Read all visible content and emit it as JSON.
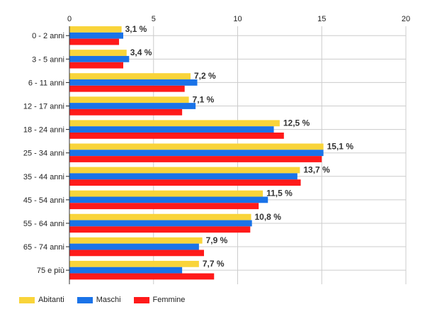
{
  "chart_data": {
    "type": "bar",
    "orientation": "horizontal",
    "title": "",
    "xlabel": "",
    "ylabel": "",
    "xlim": [
      0,
      20
    ],
    "xticks": [
      0,
      5,
      10,
      15,
      20
    ],
    "grid": true,
    "legend_position": "bottom-left",
    "categories": [
      "0 - 2 anni",
      "3 - 5 anni",
      "6 - 11 anni",
      "12 - 17 anni",
      "18 - 24 anni",
      "25 - 34 anni",
      "35 - 44 anni",
      "45 - 54 anni",
      "55 - 64 anni",
      "65 - 74 anni",
      "75 e più"
    ],
    "series": [
      {
        "name": "Abitanti",
        "color": "#f9d43a",
        "values": [
          3.1,
          3.4,
          7.2,
          7.1,
          12.5,
          15.1,
          13.7,
          11.5,
          10.8,
          7.9,
          7.7
        ]
      },
      {
        "name": "Maschi",
        "color": "#1a73e8",
        "values": [
          3.2,
          3.55,
          7.6,
          7.5,
          12.15,
          15.1,
          13.55,
          11.8,
          10.85,
          7.7,
          6.7
        ]
      },
      {
        "name": "Femmine",
        "color": "#ff1a1a",
        "values": [
          2.95,
          3.2,
          6.85,
          6.7,
          12.75,
          15.0,
          13.75,
          11.25,
          10.75,
          8.0,
          8.6
        ]
      }
    ],
    "data_labels": [
      "3,1 %",
      "3,4 %",
      "7,2 %",
      "7,1 %",
      "12,5 %",
      "15,1 %",
      "13,7 %",
      "11,5 %",
      "10,8 %",
      "7,9 %",
      "7,7 %"
    ]
  }
}
